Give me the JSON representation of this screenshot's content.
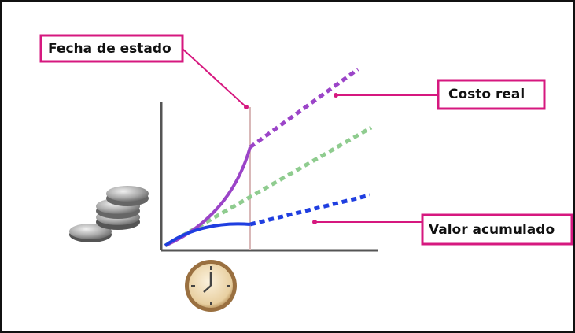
{
  "labels": {
    "status_date": "Fecha de estado",
    "actual_cost": "Costo real",
    "earned_value": "Valor acumulado"
  }
}
